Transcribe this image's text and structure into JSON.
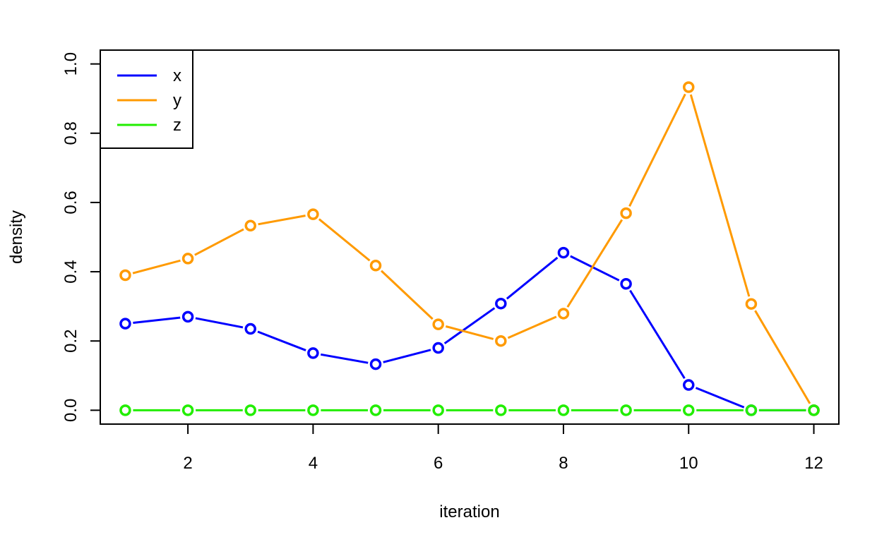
{
  "chart_data": {
    "type": "line",
    "title": "",
    "xlabel": "iteration",
    "ylabel": "density",
    "xlim": [
      0.6,
      12.4
    ],
    "ylim": [
      -0.04,
      1.04
    ],
    "x_ticks": [
      2,
      4,
      6,
      8,
      10,
      12
    ],
    "x_tick_labels": [
      "2",
      "4",
      "6",
      "8",
      "10",
      "12"
    ],
    "y_ticks": [
      0.0,
      0.2,
      0.4,
      0.6,
      0.8,
      1.0
    ],
    "y_tick_labels": [
      "0.0",
      "0.2",
      "0.4",
      "0.6",
      "0.8",
      "1.0"
    ],
    "grid": false,
    "legend_position": "top-left",
    "x": [
      1,
      2,
      3,
      4,
      5,
      6,
      7,
      8,
      9,
      10,
      11,
      12
    ],
    "series": [
      {
        "name": "x",
        "color": "#0000ff",
        "values": [
          0.25,
          0.27,
          0.235,
          0.165,
          0.133,
          0.18,
          0.308,
          0.455,
          0.365,
          0.073,
          0.0,
          0.0
        ]
      },
      {
        "name": "y",
        "color": "#ff9a00",
        "values": [
          0.39,
          0.438,
          0.533,
          0.566,
          0.418,
          0.248,
          0.2,
          0.279,
          0.569,
          0.933,
          0.307,
          0.0
        ]
      },
      {
        "name": "z",
        "color": "#22ee00",
        "values": [
          0,
          0,
          0,
          0,
          0,
          0,
          0,
          0,
          0,
          0,
          0,
          0
        ]
      }
    ]
  }
}
